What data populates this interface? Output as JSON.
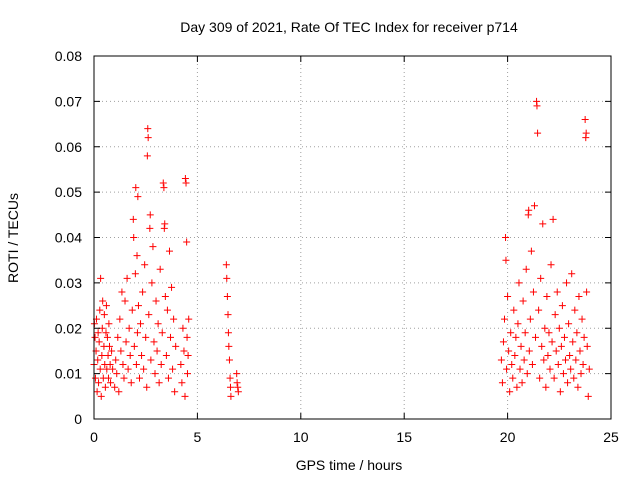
{
  "chart_data": {
    "type": "scatter",
    "title": "Day 309 of 2021, Rate Of TEC Index for receiver p714",
    "xlabel": "GPS time / hours",
    "ylabel": "ROTI / TECUs",
    "xlim": [
      0,
      25
    ],
    "ylim": [
      0,
      0.08
    ],
    "xticks": [
      0,
      5,
      10,
      15,
      20,
      25
    ],
    "yticks": [
      0,
      0.01,
      0.02,
      0.03,
      0.04,
      0.05,
      0.06,
      0.07,
      0.08
    ],
    "xtick_labels": [
      "0",
      "5",
      "10",
      "15",
      "20",
      "25"
    ],
    "ytick_labels": [
      "0",
      "0.01",
      "0.02",
      "0.03",
      "0.04",
      "0.05",
      "0.06",
      "0.07",
      "0.08"
    ],
    "grid": true,
    "marker": "plus",
    "color": "#ff0000",
    "series": [
      {
        "name": "ROTI",
        "points": [
          [
            0.0,
            0.012
          ],
          [
            0.02,
            0.021
          ],
          [
            0.05,
            0.018
          ],
          [
            0.07,
            0.009
          ],
          [
            0.1,
            0.015
          ],
          [
            0.12,
            0.022
          ],
          [
            0.15,
            0.006
          ],
          [
            0.18,
            0.013
          ],
          [
            0.2,
            0.019
          ],
          [
            0.22,
            0.008
          ],
          [
            0.25,
            0.017
          ],
          [
            0.28,
            0.024
          ],
          [
            0.3,
            0.011
          ],
          [
            0.32,
            0.031
          ],
          [
            0.35,
            0.005
          ],
          [
            0.38,
            0.014
          ],
          [
            0.4,
            0.02
          ],
          [
            0.42,
            0.026
          ],
          [
            0.45,
            0.009
          ],
          [
            0.48,
            0.016
          ],
          [
            0.5,
            0.023
          ],
          [
            0.52,
            0.012
          ],
          [
            0.55,
            0.007
          ],
          [
            0.58,
            0.019
          ],
          [
            0.6,
            0.025
          ],
          [
            0.62,
            0.011
          ],
          [
            0.65,
            0.018
          ],
          [
            0.68,
            0.014
          ],
          [
            0.7,
            0.009
          ],
          [
            0.72,
            0.021
          ],
          [
            0.75,
            0.016
          ],
          [
            0.78,
            0.012
          ],
          [
            0.8,
            0.008
          ],
          [
            0.85,
            0.015
          ],
          [
            0.9,
            0.011
          ],
          [
            1.0,
            0.007
          ],
          [
            1.05,
            0.013
          ],
          [
            1.1,
            0.01
          ],
          [
            1.15,
            0.018
          ],
          [
            1.2,
            0.006
          ],
          [
            1.25,
            0.022
          ],
          [
            1.3,
            0.015
          ],
          [
            1.35,
            0.028
          ],
          [
            1.4,
            0.012
          ],
          [
            1.45,
            0.009
          ],
          [
            1.5,
            0.026
          ],
          [
            1.55,
            0.017
          ],
          [
            1.6,
            0.031
          ],
          [
            1.65,
            0.011
          ],
          [
            1.7,
            0.02
          ],
          [
            1.75,
            0.014
          ],
          [
            1.8,
            0.008
          ],
          [
            1.85,
            0.024
          ],
          [
            1.9,
            0.044
          ],
          [
            1.92,
            0.04
          ],
          [
            1.95,
            0.016
          ],
          [
            2.0,
            0.032
          ],
          [
            2.02,
            0.051
          ],
          [
            2.05,
            0.012
          ],
          [
            2.08,
            0.036
          ],
          [
            2.1,
            0.019
          ],
          [
            2.12,
            0.049
          ],
          [
            2.15,
            0.025
          ],
          [
            2.2,
            0.009
          ],
          [
            2.25,
            0.021
          ],
          [
            2.3,
            0.014
          ],
          [
            2.35,
            0.028
          ],
          [
            2.4,
            0.011
          ],
          [
            2.45,
            0.034
          ],
          [
            2.5,
            0.018
          ],
          [
            2.55,
            0.007
          ],
          [
            2.58,
            0.058
          ],
          [
            2.6,
            0.064
          ],
          [
            2.62,
            0.062
          ],
          [
            2.65,
            0.023
          ],
          [
            2.7,
            0.042
          ],
          [
            2.72,
            0.045
          ],
          [
            2.75,
            0.013
          ],
          [
            2.8,
            0.03
          ],
          [
            2.85,
            0.038
          ],
          [
            2.9,
            0.017
          ],
          [
            2.95,
            0.01
          ],
          [
            3.0,
            0.026
          ],
          [
            3.05,
            0.015
          ],
          [
            3.1,
            0.021
          ],
          [
            3.15,
            0.008
          ],
          [
            3.2,
            0.033
          ],
          [
            3.25,
            0.012
          ],
          [
            3.3,
            0.019
          ],
          [
            3.35,
            0.052
          ],
          [
            3.38,
            0.051
          ],
          [
            3.4,
            0.042
          ],
          [
            3.42,
            0.043
          ],
          [
            3.45,
            0.027
          ],
          [
            3.5,
            0.014
          ],
          [
            3.55,
            0.024
          ],
          [
            3.6,
            0.009
          ],
          [
            3.65,
            0.037
          ],
          [
            3.7,
            0.018
          ],
          [
            3.75,
            0.029
          ],
          [
            3.8,
            0.011
          ],
          [
            3.85,
            0.022
          ],
          [
            3.9,
            0.006
          ],
          [
            3.95,
            0.016
          ],
          [
            4.2,
            0.012
          ],
          [
            4.25,
            0.008
          ],
          [
            4.3,
            0.02
          ],
          [
            4.35,
            0.015
          ],
          [
            4.4,
            0.005
          ],
          [
            4.42,
            0.053
          ],
          [
            4.45,
            0.052
          ],
          [
            4.48,
            0.039
          ],
          [
            4.5,
            0.018
          ],
          [
            4.52,
            0.01
          ],
          [
            4.55,
            0.014
          ],
          [
            4.58,
            0.022
          ],
          [
            6.4,
            0.034
          ],
          [
            6.42,
            0.031
          ],
          [
            6.45,
            0.027
          ],
          [
            6.48,
            0.023
          ],
          [
            6.5,
            0.019
          ],
          [
            6.52,
            0.016
          ],
          [
            6.55,
            0.013
          ],
          [
            6.58,
            0.009
          ],
          [
            6.6,
            0.007
          ],
          [
            6.62,
            0.005
          ],
          [
            6.9,
            0.01
          ],
          [
            6.92,
            0.008
          ],
          [
            6.95,
            0.007
          ],
          [
            6.98,
            0.006
          ],
          [
            19.7,
            0.013
          ],
          [
            19.75,
            0.008
          ],
          [
            19.8,
            0.017
          ],
          [
            19.85,
            0.022
          ],
          [
            19.9,
            0.04
          ],
          [
            19.92,
            0.035
          ],
          [
            19.95,
            0.011
          ],
          [
            20.0,
            0.027
          ],
          [
            20.05,
            0.015
          ],
          [
            20.1,
            0.006
          ],
          [
            20.15,
            0.019
          ],
          [
            20.2,
            0.012
          ],
          [
            20.25,
            0.009
          ],
          [
            20.3,
            0.024
          ],
          [
            20.35,
            0.014
          ],
          [
            20.4,
            0.018
          ],
          [
            20.45,
            0.007
          ],
          [
            20.5,
            0.021
          ],
          [
            20.55,
            0.03
          ],
          [
            20.6,
            0.011
          ],
          [
            20.65,
            0.016
          ],
          [
            20.7,
            0.008
          ],
          [
            20.75,
            0.026
          ],
          [
            20.8,
            0.013
          ],
          [
            20.85,
            0.019
          ],
          [
            20.9,
            0.033
          ],
          [
            20.95,
            0.01
          ],
          [
            21.0,
            0.045
          ],
          [
            21.02,
            0.046
          ],
          [
            21.05,
            0.015
          ],
          [
            21.1,
            0.022
          ],
          [
            21.15,
            0.037
          ],
          [
            21.2,
            0.012
          ],
          [
            21.25,
            0.028
          ],
          [
            21.3,
            0.047
          ],
          [
            21.35,
            0.018
          ],
          [
            21.4,
            0.07
          ],
          [
            21.42,
            0.069
          ],
          [
            21.45,
            0.063
          ],
          [
            21.5,
            0.024
          ],
          [
            21.55,
            0.009
          ],
          [
            21.6,
            0.031
          ],
          [
            21.65,
            0.016
          ],
          [
            21.7,
            0.043
          ],
          [
            21.75,
            0.013
          ],
          [
            21.8,
            0.02
          ],
          [
            21.85,
            0.007
          ],
          [
            21.9,
            0.027
          ],
          [
            21.95,
            0.014
          ],
          [
            22.0,
            0.019
          ],
          [
            22.05,
            0.011
          ],
          [
            22.1,
            0.034
          ],
          [
            22.15,
            0.017
          ],
          [
            22.2,
            0.044
          ],
          [
            22.25,
            0.009
          ],
          [
            22.3,
            0.023
          ],
          [
            22.35,
            0.015
          ],
          [
            22.4,
            0.028
          ],
          [
            22.45,
            0.012
          ],
          [
            22.5,
            0.02
          ],
          [
            22.55,
            0.006
          ],
          [
            22.6,
            0.016
          ],
          [
            22.65,
            0.025
          ],
          [
            22.7,
            0.01
          ],
          [
            22.75,
            0.018
          ],
          [
            22.8,
            0.013
          ],
          [
            22.85,
            0.03
          ],
          [
            22.9,
            0.008
          ],
          [
            22.95,
            0.021
          ],
          [
            23.0,
            0.014
          ],
          [
            23.05,
            0.011
          ],
          [
            23.1,
            0.032
          ],
          [
            23.15,
            0.017
          ],
          [
            23.2,
            0.009
          ],
          [
            23.25,
            0.024
          ],
          [
            23.3,
            0.013
          ],
          [
            23.35,
            0.019
          ],
          [
            23.4,
            0.007
          ],
          [
            23.45,
            0.027
          ],
          [
            23.5,
            0.015
          ],
          [
            23.55,
            0.01
          ],
          [
            23.6,
            0.022
          ],
          [
            23.65,
            0.012
          ],
          [
            23.7,
            0.018
          ],
          [
            23.75,
            0.066
          ],
          [
            23.78,
            0.062
          ],
          [
            23.8,
            0.063
          ],
          [
            23.82,
            0.028
          ],
          [
            23.85,
            0.016
          ],
          [
            23.9,
            0.005
          ],
          [
            23.95,
            0.011
          ]
        ]
      }
    ]
  }
}
